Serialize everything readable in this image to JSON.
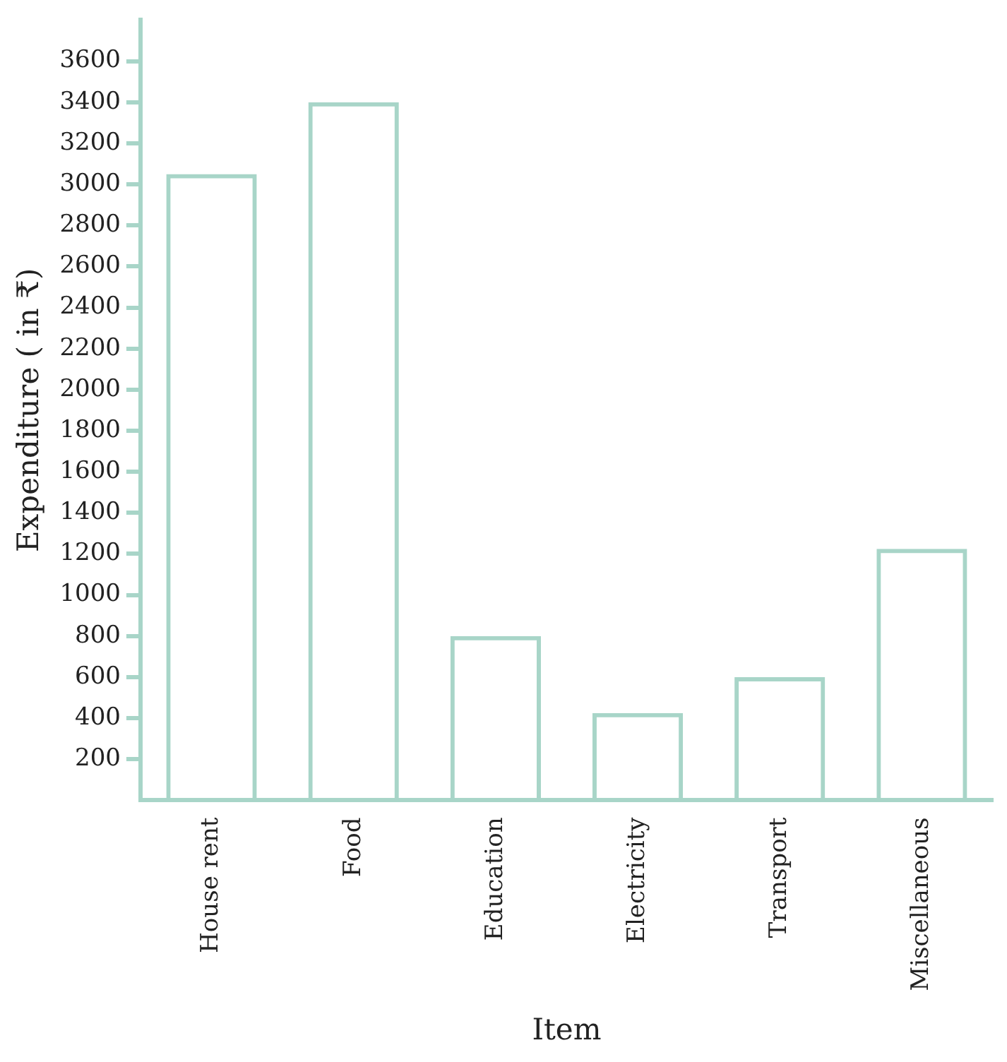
{
  "chart_data": {
    "type": "bar",
    "xlabel": "Item",
    "ylabel": "Expenditure ( in ₹)",
    "categories": [
      "House rent",
      "Food",
      "Education",
      "Electricity",
      "Transport",
      "Miscellaneous"
    ],
    "values": [
      3050,
      3400,
      800,
      425,
      600,
      1225
    ],
    "color": "#a8d5c8",
    "ylim": [
      0,
      3800
    ],
    "yticks": [
      200,
      400,
      600,
      800,
      1000,
      1200,
      1400,
      1600,
      1800,
      2000,
      2200,
      2400,
      2600,
      2800,
      3000,
      3200,
      3400,
      3600
    ],
    "grid": false,
    "legend": false
  }
}
